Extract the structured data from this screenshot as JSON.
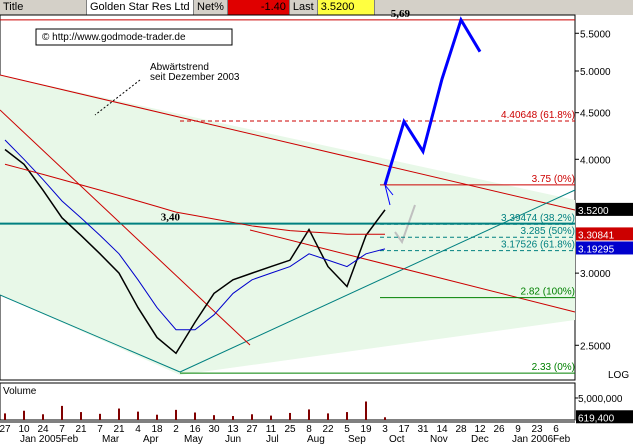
{
  "chart_data": {
    "type": "line",
    "header": {
      "title_label": "Title",
      "title": "Golden Star Res Ltd",
      "net_label": "Net%",
      "net": {
        "value": -1.4,
        "label": "-1.40"
      },
      "last_label": "Last",
      "last": {
        "value": 3.52,
        "label": "3.5200"
      }
    },
    "copyright": "© http://www.godmode-trader.de",
    "annotation": "Abwärtstrend\nseit Dezember 2003",
    "log_scale": true,
    "scale_label": "LOG",
    "categories": [
      "27",
      "10",
      "24",
      "7",
      "21",
      "7",
      "21",
      "4",
      "18",
      "2",
      "16",
      "30",
      "13",
      "27",
      "11",
      "25",
      "8",
      "22",
      "5",
      "19",
      "3",
      "17",
      "31",
      "14",
      "28",
      "12",
      "26",
      "9",
      "23",
      "6"
    ],
    "months": [
      "Jan 2005",
      "Feb",
      "Mar",
      "Apr",
      "May",
      "Jun",
      "Jul",
      "Aug",
      "Sep",
      "Oct",
      "Nov",
      "Dec",
      "Jan 2006",
      "Feb"
    ],
    "series": [
      {
        "color": "#000000",
        "values": [
          4.1,
          3.95,
          3.7,
          3.45,
          3.3,
          3.15,
          3.0,
          2.75,
          2.55,
          2.45,
          2.65,
          2.85,
          2.95,
          3.0,
          3.05,
          3.1,
          3.35,
          3.05,
          2.9,
          3.3,
          3.52,
          null,
          null,
          null,
          null,
          null,
          null,
          null,
          null,
          null
        ]
      },
      {
        "color": "#0000cc",
        "values": [
          4.2,
          4.0,
          3.8,
          3.6,
          3.45,
          3.3,
          3.15,
          2.95,
          2.75,
          2.6,
          2.6,
          2.7,
          2.85,
          2.95,
          3.0,
          3.05,
          3.15,
          3.1,
          3.05,
          3.15,
          3.19,
          null,
          null,
          null,
          null,
          null,
          null,
          null,
          null,
          null
        ]
      },
      {
        "color": "#cc0000",
        "values": [
          3.95,
          3.9,
          3.85,
          3.8,
          3.75,
          3.7,
          3.65,
          3.6,
          3.55,
          3.5,
          3.47,
          3.44,
          3.41,
          3.38,
          3.36,
          3.34,
          3.33,
          3.32,
          3.31,
          3.31,
          3.31,
          null,
          null,
          null,
          null,
          null,
          null,
          null,
          null,
          null
        ]
      },
      {
        "color": "#0000ff",
        "values": [
          null,
          null,
          null,
          null,
          null,
          null,
          null,
          null,
          null,
          null,
          null,
          null,
          null,
          null,
          null,
          null,
          null,
          null,
          null,
          null,
          3.75,
          4.4,
          4.08,
          4.9,
          5.69,
          5.25,
          null,
          null,
          null,
          null
        ]
      }
    ],
    "ylim": [
      2.29,
      5.76
    ],
    "yticks": [
      {
        "value": 5.5,
        "label": "5.5000"
      },
      {
        "value": 5.0,
        "label": "5.0000"
      },
      {
        "value": 4.5,
        "label": "4.5000"
      },
      {
        "value": 4.0,
        "label": "4.0000"
      },
      {
        "value": 3.0,
        "label": "3.0000"
      },
      {
        "value": 2.5,
        "label": "2.5000"
      }
    ],
    "levels": [
      {
        "value": 5.69,
        "label": "5,69",
        "color": "#cc0000"
      },
      {
        "value": 4.40648,
        "label": "4.40648 (61.8%)",
        "color": "#cc0000"
      },
      {
        "value": 3.75,
        "label": "3.75 (0%)",
        "color": "#cc0000"
      },
      {
        "value": 3.4,
        "label": "3,40",
        "color": "#008080"
      },
      {
        "value": 3.39474,
        "label": "3.39474 (38.2%)",
        "color": "#008080"
      },
      {
        "value": 3.285,
        "label": "3.285 (50%)",
        "color": "#008080"
      },
      {
        "value": 3.17526,
        "label": "3.17526 (61.8%)",
        "color": "#008080"
      },
      {
        "value": 2.82,
        "label": "2.82 (100%)",
        "color": "#008000"
      },
      {
        "value": 2.33,
        "label": "2.33 (0%)",
        "color": "#008000"
      }
    ],
    "markers": [
      {
        "value": 3.52,
        "label": "3.5200",
        "color": "#000000"
      },
      {
        "value": 3.30841,
        "label": "3.30841",
        "color": "#cc0000"
      },
      {
        "value": 3.19295,
        "label": "3.19295",
        "color": "#0000cc"
      }
    ],
    "volume": {
      "label": "Volume",
      "ylim": [
        0,
        8400000
      ],
      "yticks": [
        {
          "value": 5000000,
          "label": "5,000,000"
        }
      ],
      "last": {
        "value": 619400,
        "label": "619,400"
      },
      "values": [
        1500000,
        2100000,
        1300000,
        3200000,
        1800000,
        1400000,
        2600000,
        1900000,
        1200000,
        2300000,
        1700000,
        1100000,
        900000,
        1300000,
        1000000,
        1600000,
        2400000,
        1500000,
        1800000,
        4200000,
        619400,
        null,
        null,
        null,
        null,
        null,
        null,
        null,
        null,
        null
      ]
    }
  }
}
